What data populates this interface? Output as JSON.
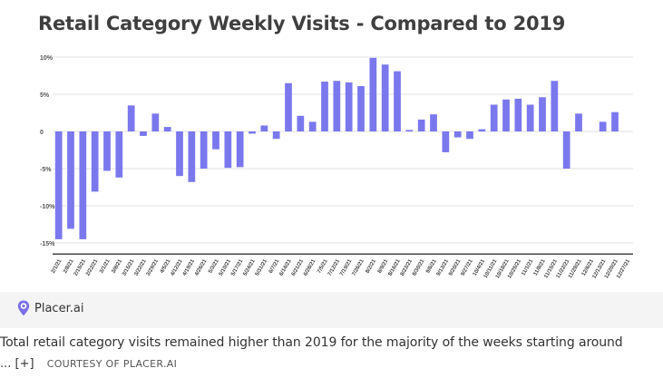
{
  "chart_data": {
    "type": "bar",
    "title": "Retail Category Weekly Visits - Compared to 2019",
    "xlabel": "",
    "ylabel": "",
    "ylim": [
      -16,
      10.5
    ],
    "yticks": [
      10,
      5,
      0,
      -5,
      -10,
      -15
    ],
    "ytick_labels": [
      "10%",
      "5%",
      "0",
      "-5%",
      "-10%",
      "-15%"
    ],
    "grid": true,
    "bar_color": "#7b78ee",
    "categories": [
      "2/1/21",
      "2/8/21",
      "2/15/21",
      "2/22/21",
      "3/1/21",
      "3/8/21",
      "3/15/21",
      "3/22/21",
      "3/29/21",
      "4/5/21",
      "4/12/21",
      "4/19/21",
      "4/26/21",
      "5/3/21",
      "5/10/21",
      "5/17/21",
      "5/24/21",
      "5/31/21",
      "6/7/21",
      "6/14/21",
      "6/21/21",
      "6/28/21",
      "7/5/21",
      "7/12/21",
      "7/19/21",
      "7/26/21",
      "8/2/21",
      "8/9/21",
      "8/16/21",
      "8/23/21",
      "8/30/21",
      "9/6/21",
      "9/13/21",
      "9/20/21",
      "9/27/21",
      "10/4/21",
      "10/11/21",
      "10/18/21",
      "10/25/21",
      "11/1/21",
      "11/8/21",
      "11/15/21",
      "11/22/21",
      "11/29/21",
      "12/6/21",
      "12/13/21",
      "12/20/21",
      "12/27/21"
    ],
    "values": [
      -14.5,
      -13.1,
      -14.5,
      -8.1,
      -5.3,
      -6.2,
      3.5,
      -0.6,
      2.4,
      0.6,
      -6.0,
      -6.8,
      -5.0,
      -2.4,
      -4.9,
      -4.8,
      -0.3,
      0.8,
      -1.0,
      6.5,
      2.1,
      1.3,
      6.7,
      6.8,
      6.6,
      6.1,
      9.9,
      9.0,
      8.1,
      0.2,
      1.6,
      2.3,
      -2.8,
      -0.8,
      -1.0,
      0.3,
      3.6,
      4.3,
      4.4,
      3.6,
      4.6,
      6.8,
      -5.0,
      2.4,
      null,
      1.3,
      2.6,
      null
    ]
  },
  "logo": {
    "text": "Placer.ai"
  },
  "caption": {
    "text": "Total retail category visits remained higher than 2019 for the majority of the weeks starting around",
    "ellipsis": "...",
    "expand": "[+]",
    "credit": "COURTESY OF PLACER.AI"
  },
  "colors": {
    "bar": "#7b78ee",
    "grid": "#e2e2e2",
    "axis": "#444444",
    "title": "#3f3f3f"
  }
}
